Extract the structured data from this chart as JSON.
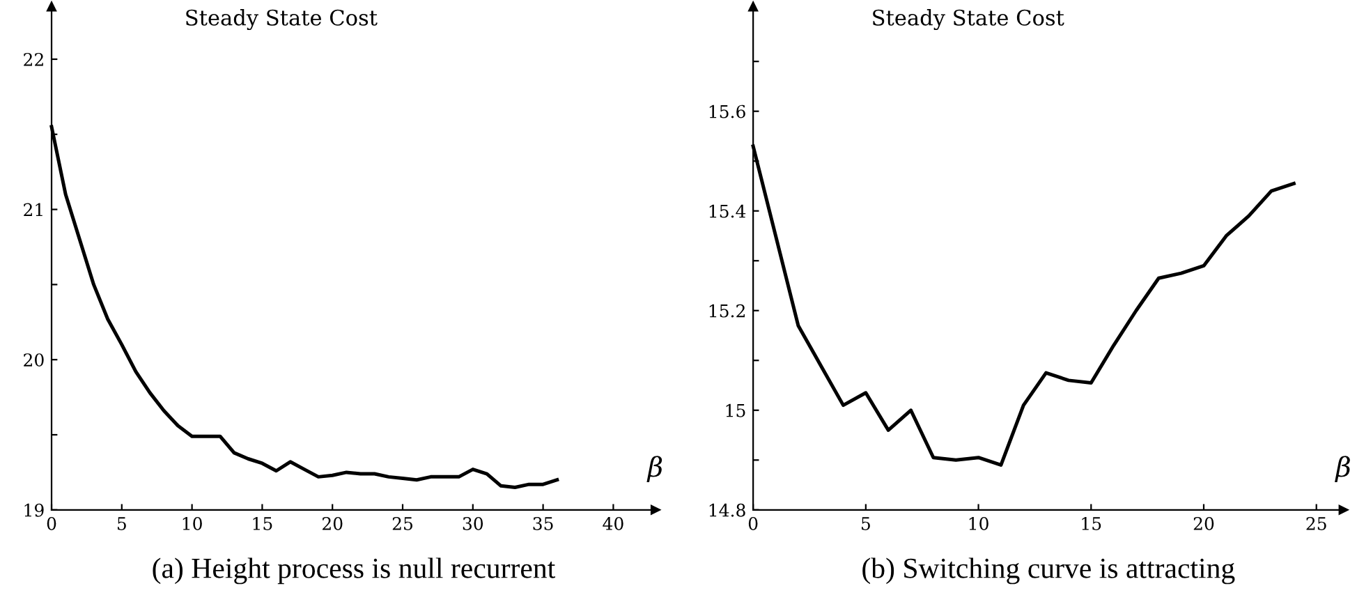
{
  "chart_data": [
    {
      "type": "line",
      "title": "(a) Height process is null recurrent",
      "ylabel": "Steady State Cost",
      "xlabel": "β",
      "x": [
        0,
        1,
        2,
        3,
        4,
        5,
        6,
        7,
        8,
        9,
        10,
        11,
        12,
        13,
        14,
        15,
        16,
        17,
        18,
        19,
        20,
        21,
        22,
        23,
        24,
        25,
        26,
        27,
        28,
        29,
        30,
        31,
        32,
        33,
        34,
        35,
        36
      ],
      "series": [
        {
          "color": "#000000",
          "values": [
            21.55,
            21.1,
            20.8,
            20.5,
            20.27,
            20.1,
            19.92,
            19.78,
            19.66,
            19.56,
            19.49,
            19.49,
            19.49,
            19.38,
            19.34,
            19.31,
            19.26,
            19.32,
            19.27,
            19.22,
            19.23,
            19.25,
            19.24,
            19.24,
            19.22,
            19.21,
            19.2,
            19.22,
            19.22,
            19.22,
            19.27,
            19.24,
            19.16,
            19.15,
            19.17,
            19.17,
            19.2
          ]
        }
      ],
      "xlim": [
        0,
        43
      ],
      "ylim": [
        19,
        22.35
      ],
      "xticks": [
        0,
        5,
        10,
        15,
        20,
        25,
        30,
        35,
        40
      ],
      "yticks": [
        19,
        {
          "value": 19.5,
          "label": null
        },
        20,
        {
          "value": 20.5,
          "label": null
        },
        21,
        {
          "value": 21.5,
          "label": null
        },
        22
      ],
      "marker": "none",
      "line_style": "solid"
    },
    {
      "type": "line",
      "title": "(b) Switching curve is attracting",
      "ylabel": "Steady State Cost",
      "xlabel": "β",
      "x": [
        0,
        1,
        2,
        3,
        4,
        5,
        6,
        7,
        8,
        9,
        10,
        11,
        12,
        13,
        14,
        15,
        16,
        17,
        18,
        19,
        20,
        21,
        22,
        23,
        24
      ],
      "series": [
        {
          "color": "#000000",
          "values": [
            15.53,
            15.35,
            15.17,
            15.09,
            15.01,
            15.035,
            14.96,
            15.0,
            14.905,
            14.9,
            14.905,
            14.89,
            15.01,
            15.075,
            15.06,
            15.055,
            15.13,
            15.2,
            15.265,
            15.275,
            15.29,
            15.35,
            15.39,
            15.44,
            15.455
          ]
        }
      ],
      "xlim": [
        0,
        26.2
      ],
      "ylim": [
        14.8,
        15.81
      ],
      "xticks": [
        0,
        5,
        10,
        15,
        20,
        25
      ],
      "yticks": [
        {
          "value": 14.8,
          "label": "14.8"
        },
        {
          "value": 14.9,
          "label": null
        },
        {
          "value": 15,
          "label": "15"
        },
        {
          "value": 15.1,
          "label": null
        },
        {
          "value": 15.2,
          "label": "15.2"
        },
        {
          "value": 15.3,
          "label": null
        },
        {
          "value": 15.4,
          "label": "15.4"
        },
        {
          "value": 15.5,
          "label": null
        },
        {
          "value": 15.6,
          "label": "15.6"
        },
        {
          "value": 15.7,
          "label": null
        }
      ],
      "marker": "none",
      "line_style": "solid"
    }
  ]
}
